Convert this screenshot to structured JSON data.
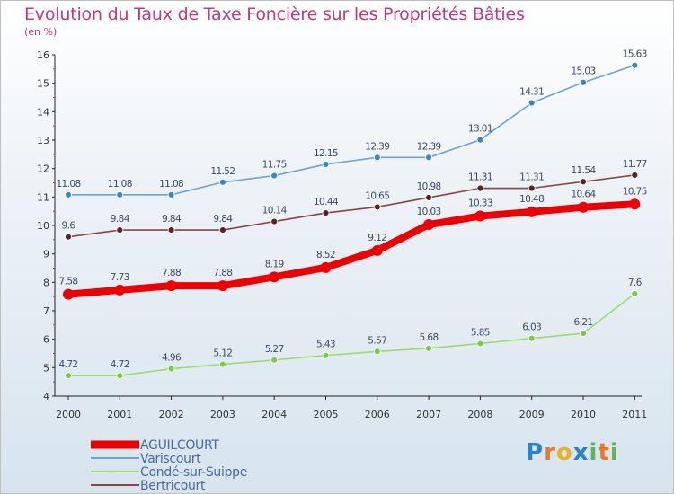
{
  "title": "Evolution du Taux de Taxe Foncière sur les Propriétés Bâties",
  "unit_label": "(en %)",
  "logo": {
    "text": "Proxiti",
    "letters": [
      "P",
      "r",
      "o",
      "x",
      "i",
      "t",
      "i"
    ],
    "colors": [
      "#2a82c8",
      "#e8792b",
      "#e8b02b",
      "#2a82c8",
      "#5bb55a",
      "#e8792b",
      "#5bb55a"
    ]
  },
  "chart_data": {
    "type": "line",
    "title": "Evolution du Taux de Taxe Foncière sur les Propriétés Bâties",
    "ylabel": "(en %)",
    "xlabel": "",
    "ylim": [
      4,
      16
    ],
    "yticks": [
      "4",
      "5",
      "6",
      "7",
      "8",
      "9",
      "10",
      "11",
      "12",
      "13",
      "14",
      "15",
      "16"
    ],
    "x": [
      "2000",
      "2001",
      "2002",
      "2003",
      "2004",
      "2005",
      "2006",
      "2007",
      "2008",
      "2009",
      "2010",
      "2011"
    ],
    "grid": false,
    "legend_position": "bottom-left",
    "series": [
      {
        "name": "AGUILCOURT",
        "color": "#ee0000",
        "width": 8,
        "marker": 6,
        "values": [
          7.58,
          7.73,
          7.88,
          7.88,
          8.19,
          8.52,
          9.12,
          10.03,
          10.33,
          10.48,
          10.64,
          10.75
        ],
        "labels": [
          "7.58",
          "7.73",
          "7.88",
          "7.88",
          "8.19",
          "8.52",
          "9.12",
          "10.03",
          "10.33",
          "10.48",
          "10.64",
          "10.75"
        ]
      },
      {
        "name": "Variscourt",
        "color": "#6fa3d2",
        "width": 1.6,
        "marker": 3.5,
        "values": [
          11.08,
          11.08,
          11.08,
          11.52,
          11.75,
          12.15,
          12.39,
          12.39,
          13.01,
          14.31,
          15.03,
          15.63
        ],
        "labels": [
          "11.08",
          "11.08",
          "11.08",
          "11.52",
          "11.75",
          "12.15",
          "12.39",
          "12.39",
          "13.01",
          "14.31",
          "15.03",
          "15.63"
        ]
      },
      {
        "name": "Condé-sur-Suippe",
        "color": "#99dd66",
        "width": 1.6,
        "marker": 3.5,
        "values": [
          4.72,
          4.72,
          4.96,
          5.12,
          5.27,
          5.43,
          5.57,
          5.68,
          5.85,
          6.03,
          6.21,
          7.6
        ],
        "labels": [
          "4.72",
          "4.72",
          "4.96",
          "5.12",
          "5.27",
          "5.43",
          "5.57",
          "5.68",
          "5.85",
          "6.03",
          "6.21",
          "7.6"
        ]
      },
      {
        "name": "Bertricourt",
        "color": "#884444",
        "width": 1.6,
        "marker": 3.5,
        "values": [
          9.6,
          9.84,
          9.84,
          9.84,
          10.14,
          10.44,
          10.65,
          10.98,
          11.31,
          11.31,
          11.54,
          11.77
        ],
        "labels": [
          "9.6",
          "9.84",
          "9.84",
          "9.84",
          "10.14",
          "10.44",
          "10.65",
          "10.98",
          "11.31",
          "11.31",
          "11.54",
          "11.77"
        ]
      }
    ],
    "marker_colors": {
      "AGUILCOURT": "#ee0000",
      "Variscourt": "#3a86c8",
      "Condé-sur-Suippe": "#7cc84a",
      "Bertricourt": "#5a2222"
    }
  }
}
